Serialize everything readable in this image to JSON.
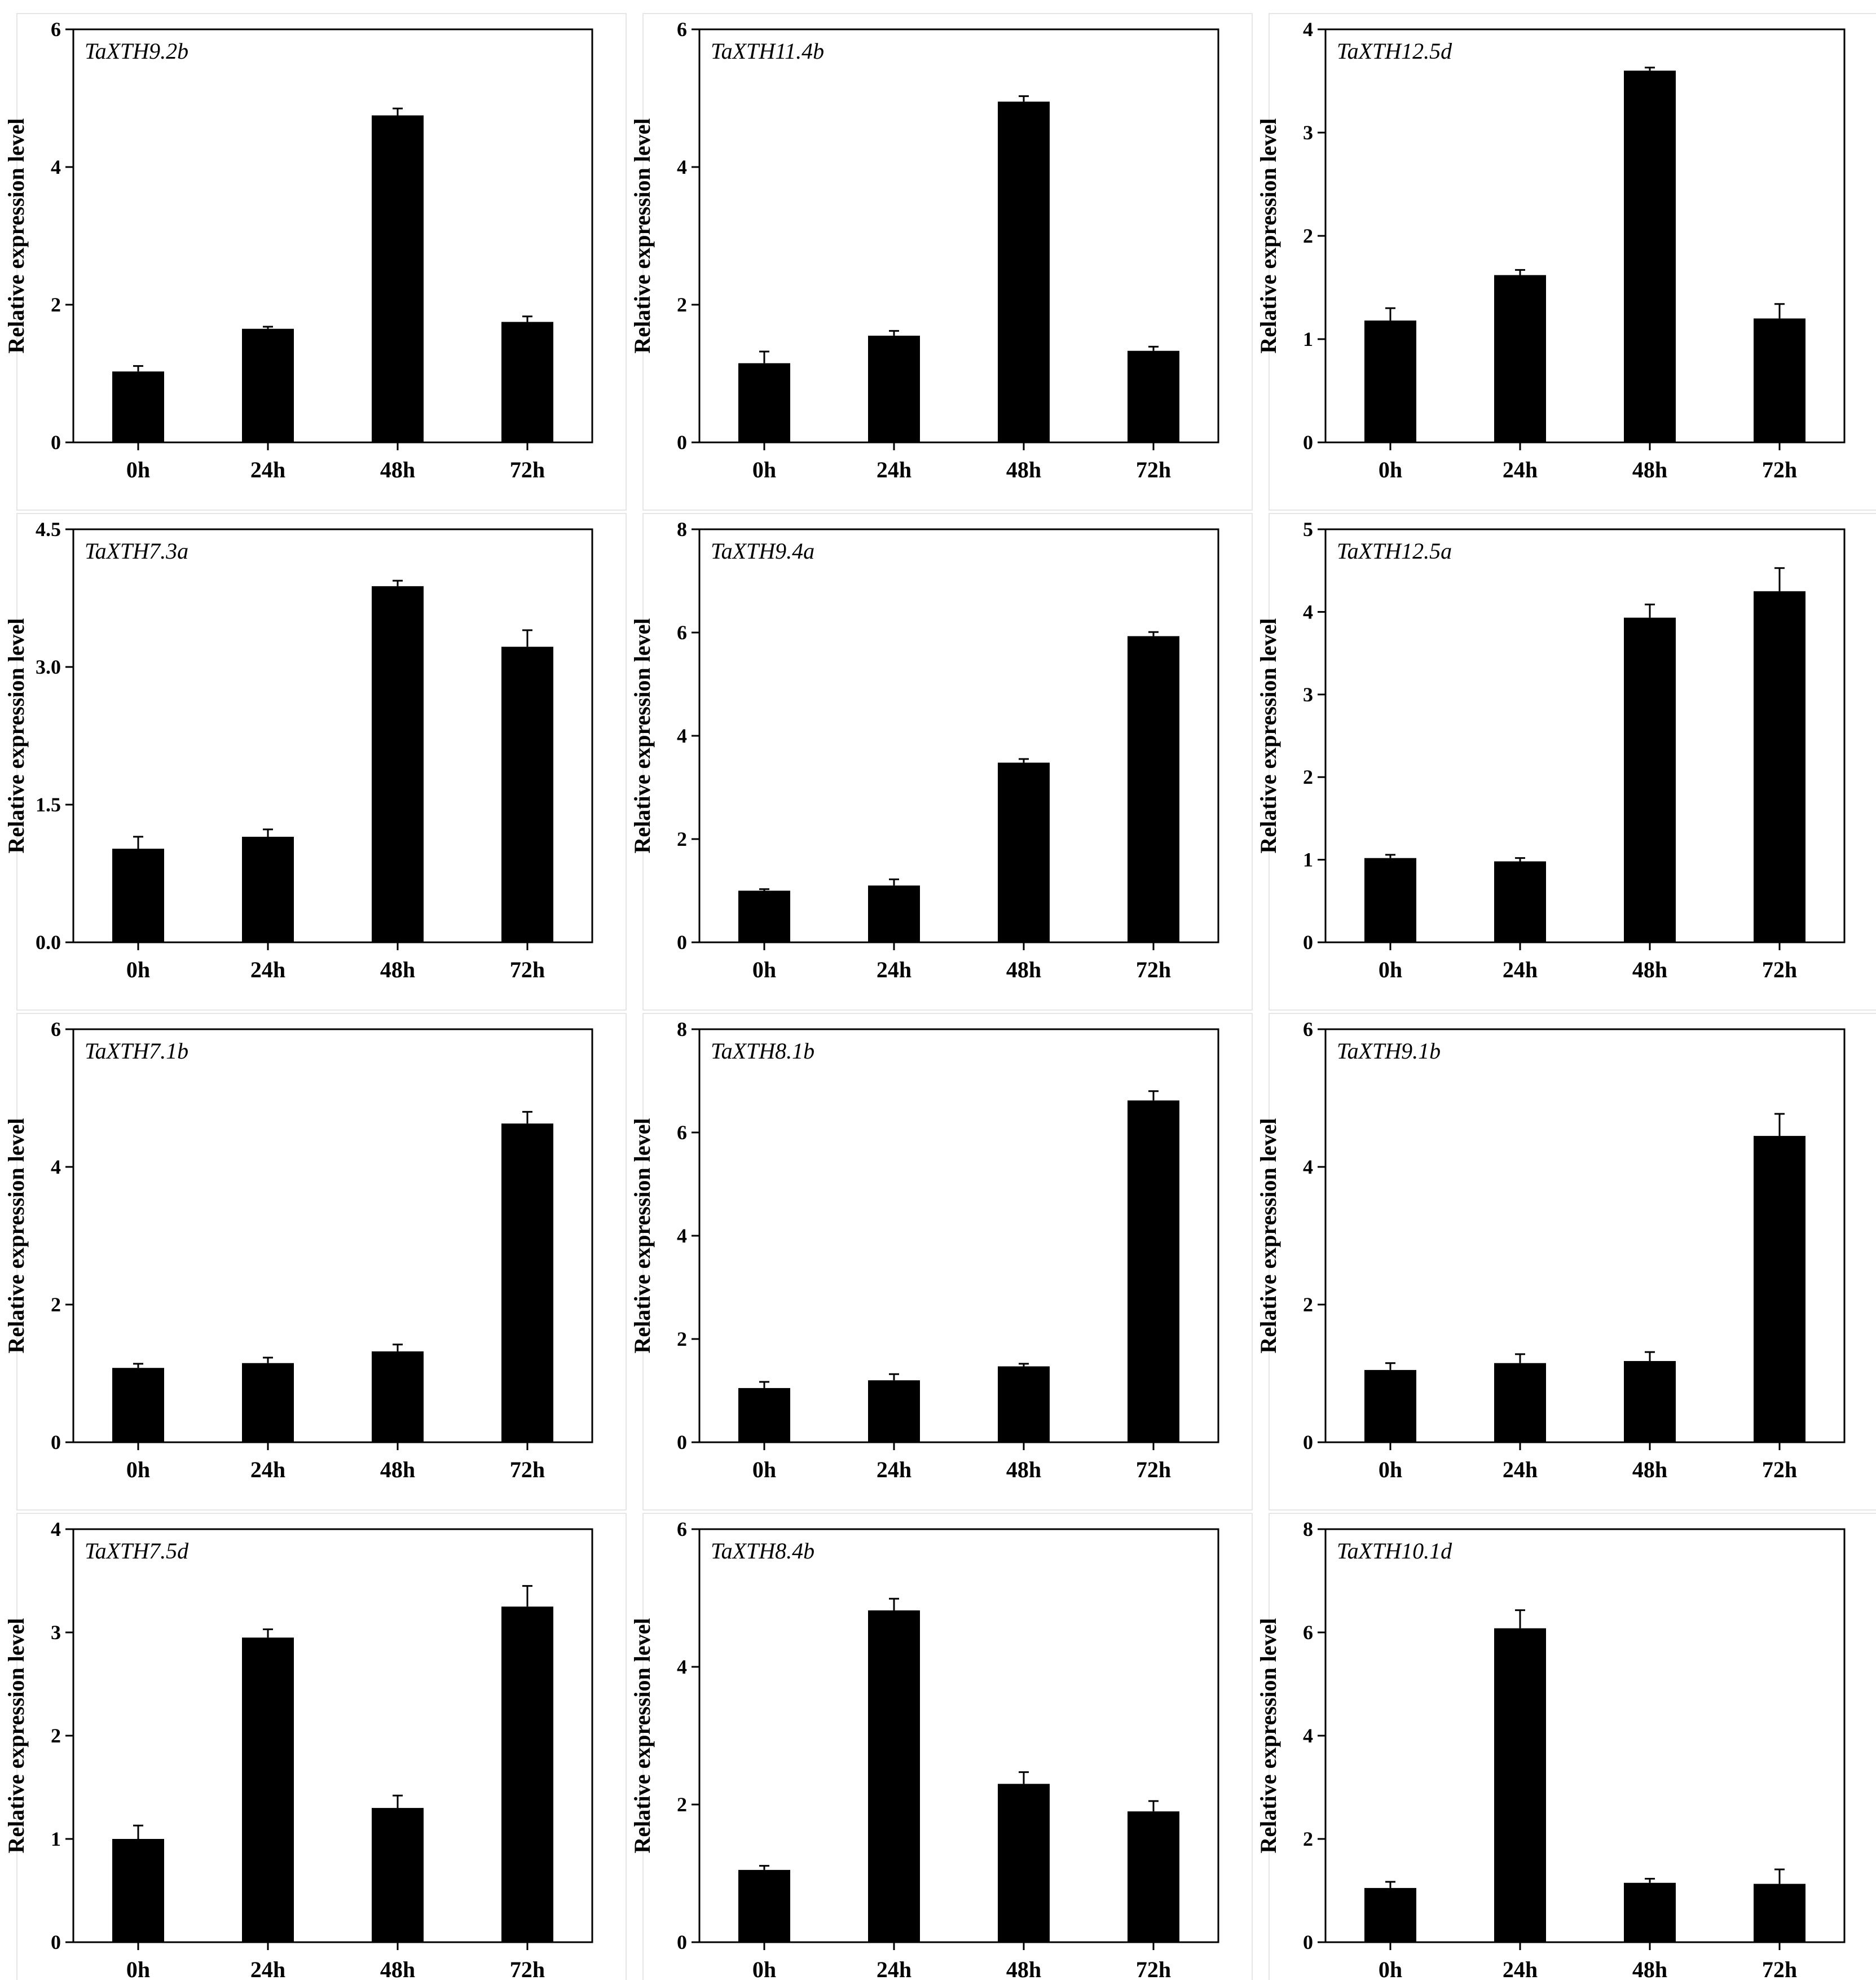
{
  "chart_data": [
    {
      "type": "bar",
      "title": "TaXTH9.2b",
      "ylabel": "Relative expression level",
      "xlabel": "",
      "categories": [
        "0h",
        "24h",
        "48h",
        "72h"
      ],
      "values": [
        1.03,
        1.65,
        4.75,
        1.75
      ],
      "errors": [
        0.08,
        0.03,
        0.1,
        0.08
      ],
      "ylim": [
        0,
        6
      ],
      "yticks": [
        0,
        2,
        4,
        6
      ],
      "ytick_labels": [
        "0",
        "2",
        "4",
        "6"
      ]
    },
    {
      "type": "bar",
      "title": "TaXTH11.4b",
      "ylabel": "Relative expression level",
      "xlabel": "",
      "categories": [
        "0h",
        "24h",
        "48h",
        "72h"
      ],
      "values": [
        1.15,
        1.55,
        4.95,
        1.33
      ],
      "errors": [
        0.17,
        0.07,
        0.08,
        0.06
      ],
      "ylim": [
        0,
        6
      ],
      "yticks": [
        0,
        2,
        4,
        6
      ],
      "ytick_labels": [
        "0",
        "2",
        "4",
        "6"
      ]
    },
    {
      "type": "bar",
      "title": "TaXTH12.5d",
      "ylabel": "Relative expression level",
      "xlabel": "",
      "categories": [
        "0h",
        "24h",
        "48h",
        "72h"
      ],
      "values": [
        1.18,
        1.62,
        3.6,
        1.2
      ],
      "errors": [
        0.12,
        0.05,
        0.03,
        0.14
      ],
      "ylim": [
        0,
        4
      ],
      "yticks": [
        0,
        1,
        2,
        3,
        4
      ],
      "ytick_labels": [
        "0",
        "1",
        "2",
        "3",
        "4"
      ]
    },
    {
      "type": "bar",
      "title": "TaXTH7.3a",
      "ylabel": "Relative expression level",
      "xlabel": "",
      "categories": [
        "0h",
        "24h",
        "48h",
        "72h"
      ],
      "values": [
        1.02,
        1.15,
        3.88,
        3.22
      ],
      "errors": [
        0.13,
        0.08,
        0.06,
        0.18
      ],
      "ylim": [
        0,
        4.5
      ],
      "yticks": [
        0,
        1.5,
        3.0,
        4.5
      ],
      "ytick_labels": [
        "0.0",
        "1.5",
        "3.0",
        "4.5"
      ]
    },
    {
      "type": "bar",
      "title": "TaXTH9.4a",
      "ylabel": "Relative expression level",
      "xlabel": "",
      "categories": [
        "0h",
        "24h",
        "48h",
        "72h"
      ],
      "values": [
        1.0,
        1.1,
        3.48,
        5.93
      ],
      "errors": [
        0.03,
        0.12,
        0.07,
        0.08
      ],
      "ylim": [
        0,
        8
      ],
      "yticks": [
        0,
        2,
        4,
        6,
        8
      ],
      "ytick_labels": [
        "0",
        "2",
        "4",
        "6",
        "8"
      ]
    },
    {
      "type": "bar",
      "title": "TaXTH12.5a",
      "ylabel": "Relative expression level",
      "xlabel": "",
      "categories": [
        "0h",
        "24h",
        "48h",
        "72h"
      ],
      "values": [
        1.02,
        0.98,
        3.93,
        4.25
      ],
      "errors": [
        0.04,
        0.04,
        0.16,
        0.28
      ],
      "ylim": [
        0,
        5
      ],
      "yticks": [
        0,
        1,
        2,
        3,
        4,
        5
      ],
      "ytick_labels": [
        "0",
        "1",
        "2",
        "3",
        "4",
        "5"
      ]
    },
    {
      "type": "bar",
      "title": "TaXTH7.1b",
      "ylabel": "Relative expression level",
      "xlabel": "",
      "categories": [
        "0h",
        "24h",
        "48h",
        "72h"
      ],
      "values": [
        1.08,
        1.15,
        1.32,
        4.63
      ],
      "errors": [
        0.06,
        0.08,
        0.1,
        0.17
      ],
      "ylim": [
        0,
        6
      ],
      "yticks": [
        0,
        2,
        4,
        6
      ],
      "ytick_labels": [
        "0",
        "2",
        "4",
        "6"
      ]
    },
    {
      "type": "bar",
      "title": "TaXTH8.1b",
      "ylabel": "Relative expression level",
      "xlabel": "",
      "categories": [
        "0h",
        "24h",
        "48h",
        "72h"
      ],
      "values": [
        1.05,
        1.2,
        1.47,
        6.62
      ],
      "errors": [
        0.12,
        0.12,
        0.05,
        0.18
      ],
      "ylim": [
        0,
        8
      ],
      "yticks": [
        0,
        2,
        4,
        6,
        8
      ],
      "ytick_labels": [
        "0",
        "2",
        "4",
        "6",
        "8"
      ]
    },
    {
      "type": "bar",
      "title": "TaXTH9.1b",
      "ylabel": "Relative expression level",
      "xlabel": "",
      "categories": [
        "0h",
        "24h",
        "48h",
        "72h"
      ],
      "values": [
        1.05,
        1.15,
        1.18,
        4.45
      ],
      "errors": [
        0.1,
        0.13,
        0.13,
        0.32
      ],
      "ylim": [
        0,
        6
      ],
      "yticks": [
        0,
        2,
        4,
        6
      ],
      "ytick_labels": [
        "0",
        "2",
        "4",
        "6"
      ]
    },
    {
      "type": "bar",
      "title": "TaXTH7.5d",
      "ylabel": "Relative expression level",
      "xlabel": "",
      "categories": [
        "0h",
        "24h",
        "48h",
        "72h"
      ],
      "values": [
        1.0,
        2.95,
        1.3,
        3.25
      ],
      "errors": [
        0.13,
        0.08,
        0.12,
        0.2
      ],
      "ylim": [
        0,
        4
      ],
      "yticks": [
        0,
        1,
        2,
        3,
        4
      ],
      "ytick_labels": [
        "0",
        "1",
        "2",
        "3",
        "4"
      ]
    },
    {
      "type": "bar",
      "title": "TaXTH8.4b",
      "ylabel": "Relative expression level",
      "xlabel": "",
      "categories": [
        "0h",
        "24h",
        "48h",
        "72h"
      ],
      "values": [
        1.05,
        4.82,
        2.3,
        1.9
      ],
      "errors": [
        0.06,
        0.17,
        0.17,
        0.15
      ],
      "ylim": [
        0,
        6
      ],
      "yticks": [
        0,
        2,
        4,
        6
      ],
      "ytick_labels": [
        "0",
        "2",
        "4",
        "6"
      ]
    },
    {
      "type": "bar",
      "title": "TaXTH10.1d",
      "ylabel": "Relative expression level",
      "xlabel": "",
      "categories": [
        "0h",
        "24h",
        "48h",
        "72h"
      ],
      "values": [
        1.05,
        6.08,
        1.15,
        1.13
      ],
      "errors": [
        0.12,
        0.35,
        0.08,
        0.28
      ],
      "ylim": [
        0,
        8
      ],
      "yticks": [
        0,
        2,
        4,
        6,
        8
      ],
      "ytick_labels": [
        "0",
        "2",
        "4",
        "6",
        "8"
      ]
    }
  ]
}
